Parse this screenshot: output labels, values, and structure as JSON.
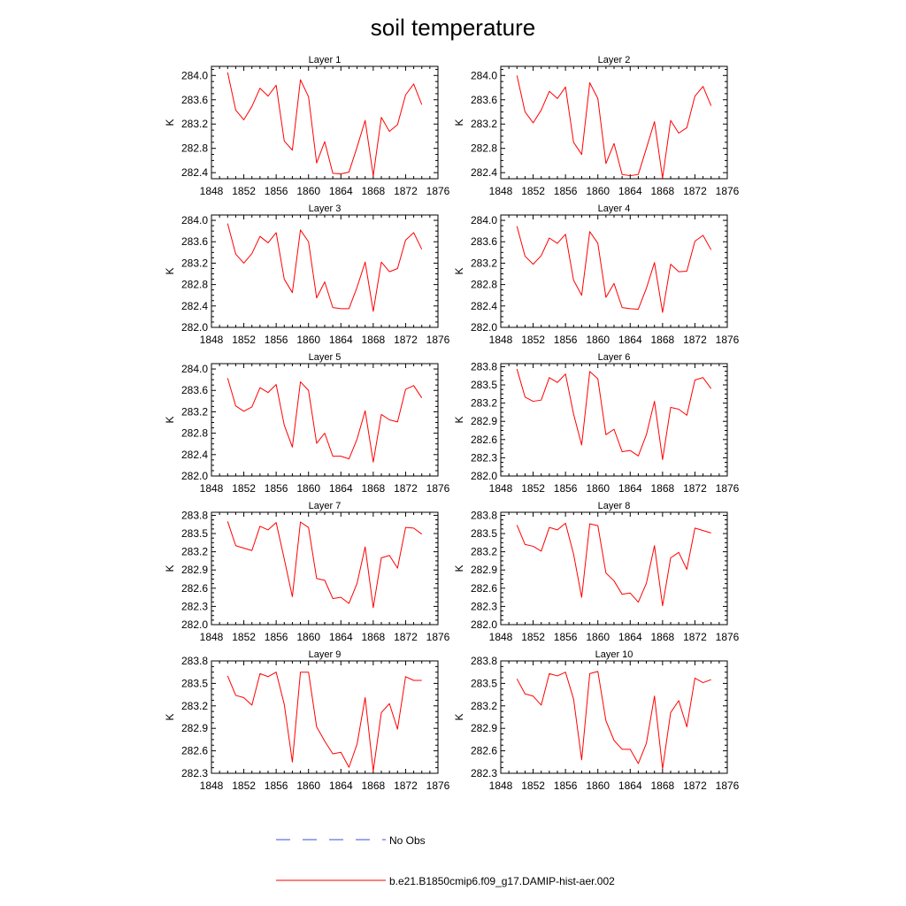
{
  "title": "soil temperature",
  "colors": {
    "model": "#ff0000",
    "obs": "#3b4fd8",
    "axis": "#000000"
  },
  "legend": {
    "obs_label": "No Obs",
    "model_label": "b.e21.B1850cmip6.f09_g17.DAMIP-hist-aer.002"
  },
  "chart_data": [
    {
      "type": "line",
      "title": "Layer 1",
      "ylabel": "K",
      "xlim": [
        1848,
        1876
      ],
      "ylim": [
        282.3,
        284.15
      ],
      "xticks": [
        1848,
        1852,
        1856,
        1860,
        1864,
        1868,
        1872,
        1876
      ],
      "yticks": [
        282.4,
        282.8,
        283.2,
        283.6,
        284.0
      ],
      "x": [
        1850,
        1851,
        1852,
        1853,
        1854,
        1855,
        1856,
        1857,
        1858,
        1859,
        1860,
        1861,
        1862,
        1863,
        1864,
        1865,
        1866,
        1867,
        1868,
        1869,
        1870,
        1871,
        1872,
        1873,
        1874
      ],
      "series": [
        {
          "values": [
            284.05,
            283.43,
            283.27,
            283.49,
            283.79,
            283.66,
            283.84,
            282.92,
            282.77,
            283.93,
            283.65,
            282.56,
            282.91,
            282.39,
            282.38,
            282.41,
            282.82,
            283.26,
            282.35,
            283.31,
            283.08,
            283.19,
            283.68,
            283.86,
            283.52
          ]
        }
      ]
    },
    {
      "type": "line",
      "title": "Layer 2",
      "ylabel": "K",
      "xlim": [
        1848,
        1876
      ],
      "ylim": [
        282.3,
        284.15
      ],
      "xticks": [
        1848,
        1852,
        1856,
        1860,
        1864,
        1868,
        1872,
        1876
      ],
      "yticks": [
        282.4,
        282.8,
        283.2,
        283.6,
        284.0
      ],
      "x": [
        1850,
        1851,
        1852,
        1853,
        1854,
        1855,
        1856,
        1857,
        1858,
        1859,
        1860,
        1861,
        1862,
        1863,
        1864,
        1865,
        1866,
        1867,
        1868,
        1869,
        1870,
        1871,
        1872,
        1873,
        1874
      ],
      "series": [
        {
          "values": [
            284.0,
            283.4,
            283.22,
            283.43,
            283.74,
            283.62,
            283.81,
            282.9,
            282.7,
            283.88,
            283.62,
            282.55,
            282.88,
            282.37,
            282.35,
            282.37,
            282.8,
            283.24,
            282.31,
            283.26,
            283.05,
            283.14,
            283.66,
            283.82,
            283.5
          ]
        }
      ]
    },
    {
      "type": "line",
      "title": "Layer 3",
      "ylabel": "K",
      "xlim": [
        1848,
        1876
      ],
      "ylim": [
        282.0,
        284.1
      ],
      "xticks": [
        1848,
        1852,
        1856,
        1860,
        1864,
        1868,
        1872,
        1876
      ],
      "yticks": [
        282.0,
        282.4,
        282.8,
        283.2,
        283.6,
        284.0
      ],
      "x": [
        1850,
        1851,
        1852,
        1853,
        1854,
        1855,
        1856,
        1857,
        1858,
        1859,
        1860,
        1861,
        1862,
        1863,
        1864,
        1865,
        1866,
        1867,
        1868,
        1869,
        1870,
        1871,
        1872,
        1873,
        1874
      ],
      "series": [
        {
          "values": [
            283.94,
            283.37,
            283.2,
            283.38,
            283.7,
            283.58,
            283.77,
            282.9,
            282.65,
            283.82,
            283.6,
            282.55,
            282.85,
            282.37,
            282.35,
            282.35,
            282.75,
            283.22,
            282.3,
            283.22,
            283.04,
            283.1,
            283.63,
            283.77,
            283.46
          ]
        }
      ]
    },
    {
      "type": "line",
      "title": "Layer 4",
      "ylabel": "K",
      "xlim": [
        1848,
        1876
      ],
      "ylim": [
        282.0,
        284.1
      ],
      "xticks": [
        1848,
        1852,
        1856,
        1860,
        1864,
        1868,
        1872,
        1876
      ],
      "yticks": [
        282.0,
        282.4,
        282.8,
        283.2,
        283.6,
        284.0
      ],
      "x": [
        1850,
        1851,
        1852,
        1853,
        1854,
        1855,
        1856,
        1857,
        1858,
        1859,
        1860,
        1861,
        1862,
        1863,
        1864,
        1865,
        1866,
        1867,
        1868,
        1869,
        1870,
        1871,
        1872,
        1873,
        1874
      ],
      "series": [
        {
          "values": [
            283.89,
            283.33,
            283.18,
            283.34,
            283.67,
            283.57,
            283.74,
            282.88,
            282.6,
            283.79,
            283.57,
            282.56,
            282.82,
            282.37,
            282.35,
            282.34,
            282.73,
            283.21,
            282.28,
            283.18,
            283.04,
            283.05,
            283.61,
            283.72,
            283.45
          ]
        }
      ]
    },
    {
      "type": "line",
      "title": "Layer 5",
      "ylabel": "K",
      "xlim": [
        1848,
        1876
      ],
      "ylim": [
        282.0,
        284.1
      ],
      "xticks": [
        1848,
        1852,
        1856,
        1860,
        1864,
        1868,
        1872,
        1876
      ],
      "yticks": [
        282.0,
        282.4,
        282.8,
        283.2,
        283.6,
        284.0
      ],
      "x": [
        1850,
        1851,
        1852,
        1853,
        1854,
        1855,
        1856,
        1857,
        1858,
        1859,
        1860,
        1861,
        1862,
        1863,
        1864,
        1865,
        1866,
        1867,
        1868,
        1869,
        1870,
        1871,
        1872,
        1873,
        1874
      ],
      "series": [
        {
          "values": [
            283.83,
            283.31,
            283.21,
            283.29,
            283.65,
            283.56,
            283.71,
            282.95,
            282.54,
            283.76,
            283.6,
            282.61,
            282.8,
            282.37,
            282.37,
            282.32,
            282.69,
            283.22,
            282.26,
            283.15,
            283.05,
            283.01,
            283.62,
            283.69,
            283.46
          ]
        }
      ]
    },
    {
      "type": "line",
      "title": "Layer 6",
      "ylabel": "K",
      "xlim": [
        1848,
        1876
      ],
      "ylim": [
        282.0,
        283.85
      ],
      "xticks": [
        1848,
        1852,
        1856,
        1860,
        1864,
        1868,
        1872,
        1876
      ],
      "yticks": [
        282.0,
        282.3,
        282.6,
        282.9,
        283.2,
        283.5,
        283.8
      ],
      "x": [
        1850,
        1851,
        1852,
        1853,
        1854,
        1855,
        1856,
        1857,
        1858,
        1859,
        1860,
        1861,
        1862,
        1863,
        1864,
        1865,
        1866,
        1867,
        1868,
        1869,
        1870,
        1871,
        1872,
        1873,
        1874
      ],
      "series": [
        {
          "values": [
            283.76,
            283.3,
            283.23,
            283.25,
            283.62,
            283.54,
            283.68,
            283.02,
            282.51,
            283.72,
            283.6,
            282.68,
            282.77,
            282.4,
            282.42,
            282.33,
            282.68,
            283.23,
            282.27,
            283.13,
            283.1,
            283.0,
            283.58,
            283.62,
            283.44
          ]
        }
      ]
    },
    {
      "type": "line",
      "title": "Layer 7",
      "ylabel": "K",
      "xlim": [
        1848,
        1876
      ],
      "ylim": [
        282.0,
        283.85
      ],
      "xticks": [
        1848,
        1852,
        1856,
        1860,
        1864,
        1868,
        1872,
        1876
      ],
      "yticks": [
        282.0,
        282.3,
        282.6,
        282.9,
        283.2,
        283.5,
        283.8
      ],
      "x": [
        1850,
        1851,
        1852,
        1853,
        1854,
        1855,
        1856,
        1857,
        1858,
        1859,
        1860,
        1861,
        1862,
        1863,
        1864,
        1865,
        1866,
        1867,
        1868,
        1869,
        1870,
        1871,
        1872,
        1873,
        1874
      ],
      "series": [
        {
          "values": [
            283.7,
            283.3,
            283.26,
            283.22,
            283.62,
            283.56,
            283.68,
            283.08,
            282.46,
            283.69,
            283.6,
            282.76,
            282.73,
            282.43,
            282.45,
            282.35,
            282.68,
            283.28,
            282.28,
            283.1,
            283.14,
            282.93,
            283.6,
            283.59,
            283.49
          ]
        }
      ]
    },
    {
      "type": "line",
      "title": "Layer 8",
      "ylabel": "K",
      "xlim": [
        1848,
        1876
      ],
      "ylim": [
        282.0,
        283.85
      ],
      "xticks": [
        1848,
        1852,
        1856,
        1860,
        1864,
        1868,
        1872,
        1876
      ],
      "yticks": [
        282.0,
        282.3,
        282.6,
        282.9,
        283.2,
        283.5,
        283.8
      ],
      "x": [
        1850,
        1851,
        1852,
        1853,
        1854,
        1855,
        1856,
        1857,
        1858,
        1859,
        1860,
        1861,
        1862,
        1863,
        1864,
        1865,
        1866,
        1867,
        1868,
        1869,
        1870,
        1871,
        1872,
        1873,
        1874
      ],
      "series": [
        {
          "values": [
            283.64,
            283.32,
            283.29,
            283.21,
            283.6,
            283.56,
            283.67,
            283.16,
            282.45,
            283.66,
            283.63,
            282.85,
            282.72,
            282.5,
            282.52,
            282.37,
            282.68,
            283.3,
            282.31,
            283.1,
            283.19,
            282.91,
            283.59,
            283.55,
            283.51
          ]
        }
      ]
    },
    {
      "type": "line",
      "title": "Layer 9",
      "ylabel": "K",
      "xlim": [
        1848,
        1876
      ],
      "ylim": [
        282.3,
        283.8
      ],
      "xticks": [
        1848,
        1852,
        1856,
        1860,
        1864,
        1868,
        1872,
        1876
      ],
      "yticks": [
        282.3,
        282.6,
        282.9,
        283.2,
        283.5,
        283.8
      ],
      "x": [
        1850,
        1851,
        1852,
        1853,
        1854,
        1855,
        1856,
        1857,
        1858,
        1859,
        1860,
        1861,
        1862,
        1863,
        1864,
        1865,
        1866,
        1867,
        1868,
        1869,
        1870,
        1871,
        1872,
        1873,
        1874
      ],
      "series": [
        {
          "values": [
            283.6,
            283.34,
            283.31,
            283.21,
            283.63,
            283.59,
            283.65,
            283.22,
            282.45,
            283.65,
            283.65,
            282.92,
            282.73,
            282.56,
            282.58,
            282.38,
            282.69,
            283.31,
            282.33,
            283.11,
            283.23,
            282.89,
            283.59,
            283.54,
            283.54
          ]
        }
      ]
    },
    {
      "type": "line",
      "title": "Layer 10",
      "ylabel": "K",
      "xlim": [
        1848,
        1876
      ],
      "ylim": [
        282.3,
        283.8
      ],
      "xticks": [
        1848,
        1852,
        1856,
        1860,
        1864,
        1868,
        1872,
        1876
      ],
      "yticks": [
        282.3,
        282.6,
        282.9,
        283.2,
        283.5,
        283.8
      ],
      "x": [
        1850,
        1851,
        1852,
        1853,
        1854,
        1855,
        1856,
        1857,
        1858,
        1859,
        1860,
        1861,
        1862,
        1863,
        1864,
        1865,
        1866,
        1867,
        1868,
        1869,
        1870,
        1871,
        1872,
        1873,
        1874
      ],
      "series": [
        {
          "values": [
            283.56,
            283.36,
            283.33,
            283.21,
            283.63,
            283.6,
            283.65,
            283.29,
            282.48,
            283.63,
            283.66,
            283.0,
            282.74,
            282.62,
            282.62,
            282.43,
            282.7,
            283.33,
            282.36,
            283.11,
            283.27,
            282.92,
            283.57,
            283.51,
            283.55
          ]
        }
      ]
    }
  ]
}
